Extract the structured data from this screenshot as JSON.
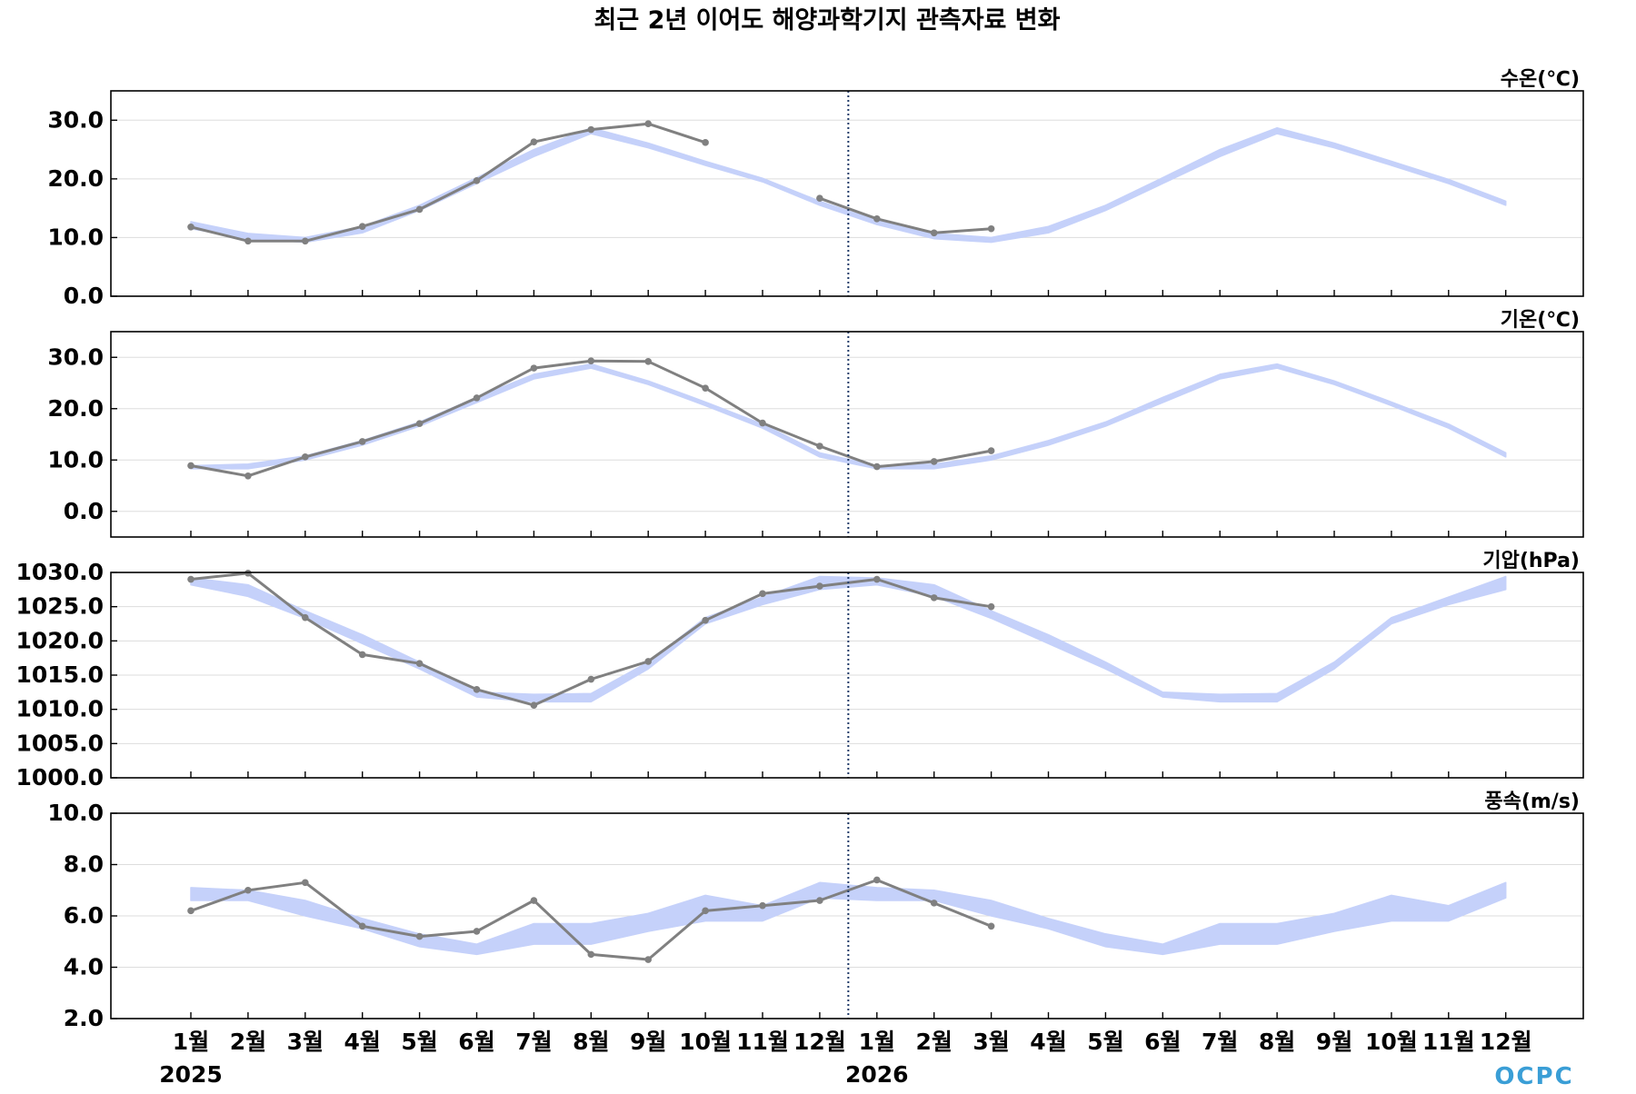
{
  "title": "최근 2년 이어도 해양과학기지 관측자료 변화",
  "logo_text": "OCPC",
  "colors": {
    "observed": "#808080",
    "climatology_band": "#c5d1fa",
    "divider": "#1f3a68",
    "grid": "#dddddd"
  },
  "chart_data": {
    "type": "line",
    "x_tick_labels": [
      "1월",
      "2월",
      "3월",
      "4월",
      "5월",
      "6월",
      "7월",
      "8월",
      "9월",
      "10월",
      "11월",
      "12월",
      "1월",
      "2월",
      "3월",
      "4월",
      "5월",
      "6월",
      "7월",
      "8월",
      "9월",
      "10월",
      "11월",
      "12월"
    ],
    "year_labels": [
      "2025",
      "2026"
    ],
    "panels": [
      {
        "label": "수온(℃)",
        "ylim": [
          0,
          35
        ],
        "yticks": [
          0,
          10,
          20,
          30
        ],
        "ytick_labels": [
          "0.0",
          "10.0",
          "20.0",
          "30.0"
        ],
        "series": [
          {
            "kind": "band",
            "lower": [
              11.5,
              9.8,
              9.2,
              10.8,
              14.6,
              19.2,
              23.8,
              27.7,
              25.3,
              22.3,
              19.5,
              15.5,
              12.2,
              9.8,
              9.2,
              10.8,
              14.6,
              19.2,
              23.8,
              27.7,
              25.3,
              22.3,
              19.2,
              15.5
            ],
            "upper": [
              12.7,
              10.7,
              10.0,
              11.9,
              15.5,
              20.2,
              25.0,
              28.7,
              26.1,
              23.0,
              20.1,
              16.2,
              12.9,
              10.7,
              10.0,
              11.9,
              15.5,
              20.2,
              25.0,
              28.7,
              26.1,
              23.0,
              19.9,
              16.2
            ]
          },
          {
            "kind": "line",
            "values": [
              11.8,
              9.4,
              9.4,
              11.9,
              14.8,
              19.7,
              26.3,
              28.4,
              29.4,
              26.2,
              null,
              16.7,
              13.2,
              10.8,
              11.5,
              null,
              null,
              null,
              null,
              null,
              null,
              null,
              null,
              null
            ]
          }
        ]
      },
      {
        "label": "기온(℃)",
        "ylim": [
          -5,
          35
        ],
        "yticks": [
          0,
          10,
          20,
          30
        ],
        "ytick_labels": [
          "0.0",
          "10.0",
          "20.0",
          "30.0"
        ],
        "series": [
          {
            "kind": "band",
            "lower": [
              8.3,
              8.3,
              10.0,
              12.9,
              16.6,
              21.2,
              25.8,
              27.9,
              24.7,
              20.6,
              16.2,
              10.6,
              8.3,
              8.3,
              10.0,
              12.9,
              16.6,
              21.2,
              25.8,
              27.9,
              24.7,
              20.6,
              16.2,
              10.6
            ],
            "upper": [
              8.9,
              9.2,
              10.8,
              13.8,
              17.4,
              22.2,
              26.7,
              28.7,
              25.4,
              21.3,
              17.0,
              11.4,
              8.9,
              9.2,
              10.8,
              13.8,
              17.4,
              22.2,
              26.7,
              28.7,
              25.4,
              21.3,
              17.0,
              11.4
            ]
          },
          {
            "kind": "line",
            "values": [
              8.9,
              6.9,
              10.6,
              13.6,
              17.1,
              22.1,
              27.9,
              29.3,
              29.2,
              24.0,
              17.2,
              12.7,
              8.7,
              9.7,
              11.8,
              null,
              null,
              null,
              null,
              null,
              null,
              null,
              null,
              null
            ]
          }
        ]
      },
      {
        "label": "기압(hPa)",
        "ylim": [
          1000,
          1030
        ],
        "yticks": [
          1000,
          1005,
          1010,
          1015,
          1020,
          1025,
          1030
        ],
        "ytick_labels": [
          "1000.0",
          "1005.0",
          "1010.0",
          "1015.0",
          "1020.0",
          "1025.0",
          "1030.0"
        ],
        "series": [
          {
            "kind": "band",
            "lower": [
              1028.2,
              1026.5,
              1023.3,
              1019.6,
              1015.9,
              1011.8,
              1011.1,
              1011.1,
              1015.9,
              1022.5,
              1025.3,
              1027.5,
              1028.2,
              1026.5,
              1023.3,
              1019.6,
              1015.9,
              1011.8,
              1011.1,
              1011.1,
              1015.9,
              1022.5,
              1025.3,
              1027.5
            ],
            "upper": [
              1029.2,
              1028.2,
              1024.4,
              1020.9,
              1016.9,
              1012.5,
              1012.2,
              1012.3,
              1016.9,
              1023.4,
              1026.4,
              1029.4,
              1029.2,
              1028.2,
              1024.4,
              1020.9,
              1016.9,
              1012.5,
              1012.2,
              1012.3,
              1016.9,
              1023.4,
              1026.4,
              1029.4
            ]
          },
          {
            "kind": "line",
            "values": [
              1029.0,
              1029.9,
              1023.4,
              1018.0,
              1016.7,
              1012.9,
              1010.6,
              1014.4,
              1017.0,
              1023.0,
              1026.9,
              1028.0,
              1029.0,
              1026.3,
              1025.0,
              null,
              null,
              null,
              null,
              null,
              null,
              null,
              null,
              null
            ]
          }
        ]
      },
      {
        "label": "풍속(m/s)",
        "ylim": [
          2,
          10
        ],
        "yticks": [
          2,
          4,
          6,
          8,
          10
        ],
        "ytick_labels": [
          "2.0",
          "4.0",
          "6.0",
          "8.0",
          "10.0"
        ],
        "series": [
          {
            "kind": "band",
            "lower": [
              6.6,
              6.6,
              6.0,
              5.5,
              4.8,
              4.5,
              4.9,
              4.9,
              5.4,
              5.8,
              5.8,
              6.7,
              6.6,
              6.6,
              6.0,
              5.5,
              4.8,
              4.5,
              4.9,
              4.9,
              5.4,
              5.8,
              5.8,
              6.7
            ],
            "upper": [
              7.1,
              7.0,
              6.6,
              5.9,
              5.3,
              4.9,
              5.7,
              5.7,
              6.1,
              6.8,
              6.4,
              7.3,
              7.1,
              7.0,
              6.6,
              5.9,
              5.3,
              4.9,
              5.7,
              5.7,
              6.1,
              6.8,
              6.4,
              7.3
            ]
          },
          {
            "kind": "line",
            "values": [
              6.2,
              7.0,
              7.3,
              5.6,
              5.2,
              5.4,
              6.6,
              4.5,
              4.3,
              6.2,
              6.4,
              6.6,
              7.4,
              6.5,
              5.6,
              null,
              null,
              null,
              null,
              null,
              null,
              null,
              null,
              null
            ]
          }
        ]
      }
    ]
  }
}
